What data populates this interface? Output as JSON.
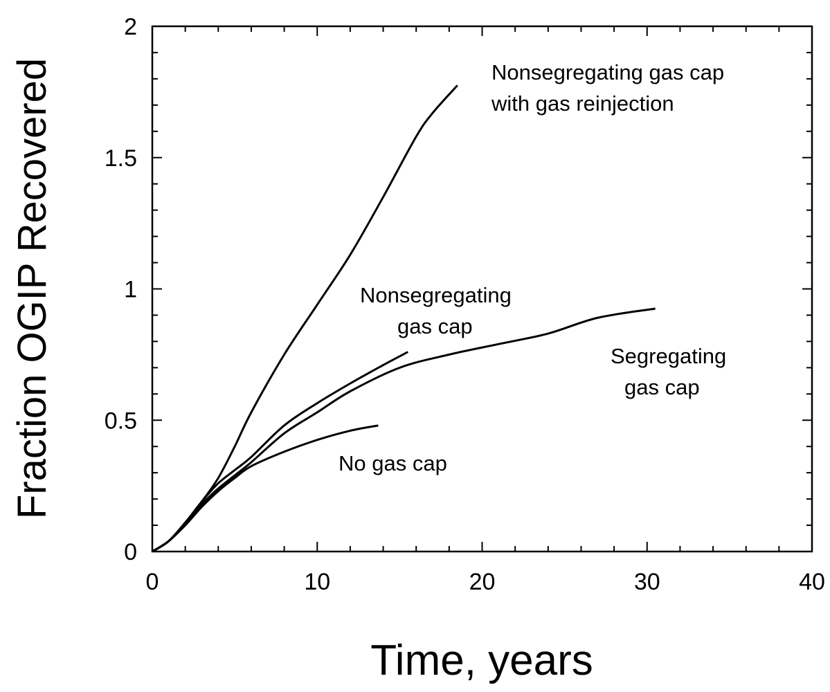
{
  "chart_data": {
    "type": "line",
    "title": "",
    "xlabel": "Time, years",
    "ylabel": "Fraction OGIP Recovered",
    "xlim": [
      0,
      40
    ],
    "ylim": [
      0,
      2
    ],
    "xticks": [
      "0",
      "10",
      "20",
      "30",
      "40"
    ],
    "yticks": [
      "0",
      "0.5",
      "1",
      "1.5",
      "2"
    ],
    "grid": false,
    "series": [
      {
        "name": "No gas cap",
        "label": "No gas cap",
        "points": [
          [
            0,
            0
          ],
          [
            1,
            0.04
          ],
          [
            2,
            0.1
          ],
          [
            3,
            0.17
          ],
          [
            4,
            0.23
          ],
          [
            5,
            0.28
          ],
          [
            6,
            0.325
          ],
          [
            8,
            0.38
          ],
          [
            10,
            0.425
          ],
          [
            12,
            0.46
          ],
          [
            13.7,
            0.48
          ]
        ]
      },
      {
        "name": "Segregating gas cap",
        "label_lines": [
          "Segregating",
          "gas cap"
        ],
        "points": [
          [
            0,
            0
          ],
          [
            1,
            0.04
          ],
          [
            2,
            0.11
          ],
          [
            3,
            0.18
          ],
          [
            4,
            0.24
          ],
          [
            5,
            0.29
          ],
          [
            6,
            0.34
          ],
          [
            8,
            0.45
          ],
          [
            10,
            0.53
          ],
          [
            12,
            0.61
          ],
          [
            15,
            0.7
          ],
          [
            18,
            0.75
          ],
          [
            21,
            0.79
          ],
          [
            24,
            0.83
          ],
          [
            27,
            0.89
          ],
          [
            30.5,
            0.925
          ]
        ]
      },
      {
        "name": "Nonsegregating gas cap",
        "label_lines": [
          "Nonsegregating",
          "gas cap"
        ],
        "points": [
          [
            0,
            0
          ],
          [
            1,
            0.04
          ],
          [
            2,
            0.11
          ],
          [
            3,
            0.19
          ],
          [
            4,
            0.26
          ],
          [
            5,
            0.31
          ],
          [
            6,
            0.36
          ],
          [
            8,
            0.48
          ],
          [
            10,
            0.565
          ],
          [
            12,
            0.64
          ],
          [
            14,
            0.71
          ],
          [
            15.5,
            0.76
          ]
        ]
      },
      {
        "name": "Nonsegregating gas cap with gas reinjection",
        "label_lines": [
          "Nonsegregating gas cap",
          "with gas reinjection"
        ],
        "points": [
          [
            0,
            0
          ],
          [
            1,
            0.04
          ],
          [
            2,
            0.11
          ],
          [
            3,
            0.19
          ],
          [
            4,
            0.28
          ],
          [
            5,
            0.4
          ],
          [
            6,
            0.53
          ],
          [
            8,
            0.75
          ],
          [
            10,
            0.94
          ],
          [
            12,
            1.13
          ],
          [
            14,
            1.35
          ],
          [
            16,
            1.58
          ],
          [
            17,
            1.67
          ],
          [
            18.5,
            1.775
          ]
        ]
      }
    ]
  }
}
